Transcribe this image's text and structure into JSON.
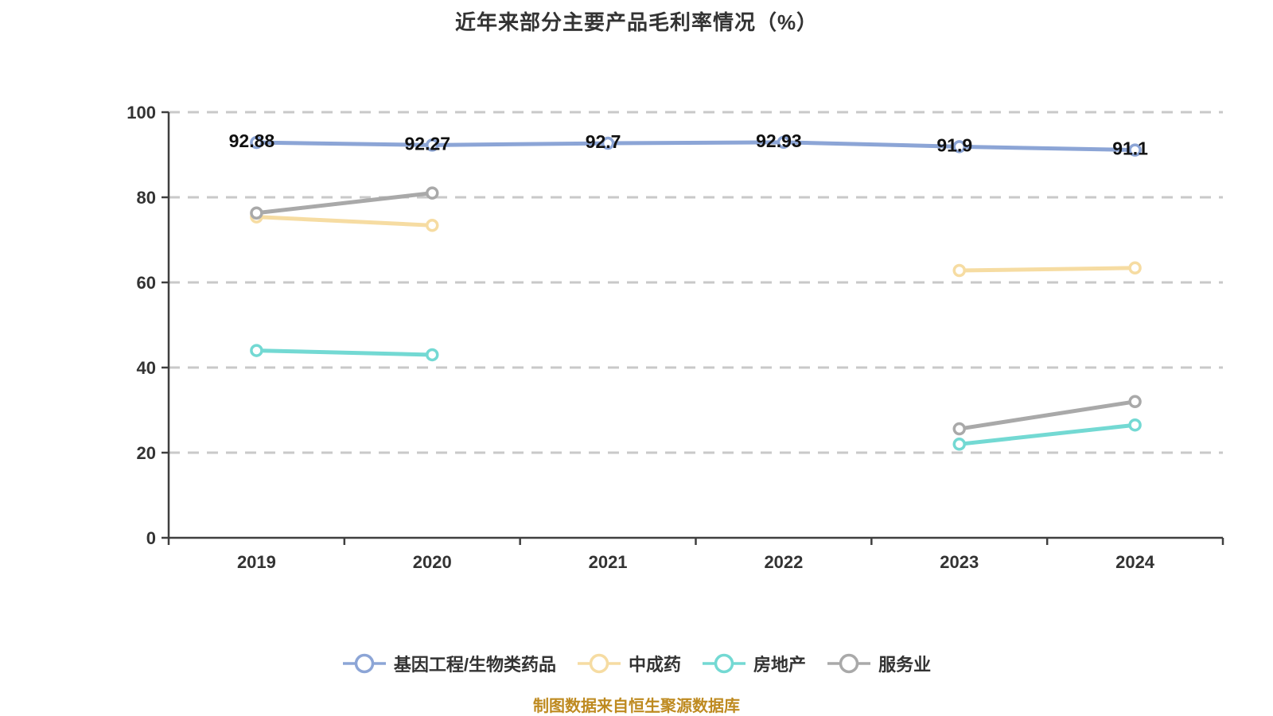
{
  "chart_data": {
    "type": "line",
    "title": "近年来部分主要产品毛利率情况（%）",
    "x": [
      "2019",
      "2020",
      "2021",
      "2022",
      "2023",
      "2024"
    ],
    "xlabel": "",
    "ylabel": "",
    "ylim": [
      0,
      100
    ],
    "yticks": [
      0,
      20,
      40,
      60,
      80,
      100
    ],
    "grid": "horizontal-dashed",
    "legend_position": "bottom",
    "series": [
      {
        "name": "基因工程/生物类药品",
        "slug": "gene-engineering-biopharma",
        "color": "#8CA5D6",
        "values": [
          92.88,
          92.27,
          92.7,
          92.93,
          91.9,
          91.1
        ],
        "show_labels": true
      },
      {
        "name": "中成药",
        "slug": "chinese-patent-medicine",
        "color": "#F6DCA2",
        "values": [
          75.4,
          73.4,
          null,
          null,
          62.8,
          63.4
        ],
        "show_labels": false
      },
      {
        "name": "房地产",
        "slug": "real-estate",
        "color": "#73D9D3",
        "values": [
          44,
          43,
          null,
          null,
          22,
          26.5
        ],
        "show_labels": false
      },
      {
        "name": "服务业",
        "slug": "services",
        "color": "#A9A9A9",
        "values": [
          76.3,
          81,
          null,
          null,
          25.6,
          32
        ],
        "show_labels": false
      }
    ]
  },
  "source_note": {
    "text": "制图数据来自恒生聚源数据库",
    "color": "#BE8A20"
  },
  "colors": {
    "title": "#333333",
    "axis": "#3F3F3F",
    "grid": "#C9C9C9",
    "tick_label": "#333333",
    "data_label": "#111111",
    "marker_fill": "#FFFFFF"
  }
}
